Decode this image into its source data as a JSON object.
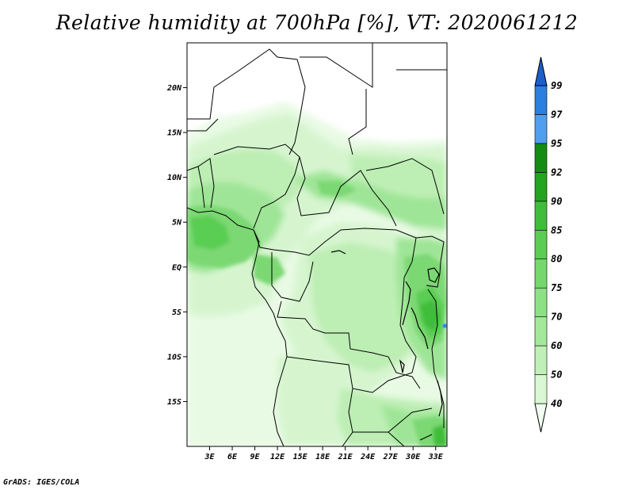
{
  "title": "Relative humidity at 700hPa [%], VT: 2020061212",
  "credit": "GrADS: IGES/COLA",
  "map": {
    "lon_range": [
      0,
      34.5
    ],
    "lat_range": [
      -20,
      25
    ],
    "lat_ticks": [
      {
        "value": 20,
        "label": "20N"
      },
      {
        "value": 15,
        "label": "15N"
      },
      {
        "value": 10,
        "label": "10N"
      },
      {
        "value": 5,
        "label": "5N"
      },
      {
        "value": 0,
        "label": "EQ"
      },
      {
        "value": -5,
        "label": "5S"
      },
      {
        "value": -10,
        "label": "10S"
      },
      {
        "value": -15,
        "label": "15S"
      }
    ],
    "lon_ticks": [
      {
        "value": 3,
        "label": "3E"
      },
      {
        "value": 6,
        "label": "6E"
      },
      {
        "value": 9,
        "label": "9E"
      },
      {
        "value": 12,
        "label": "12E"
      },
      {
        "value": 15,
        "label": "15E"
      },
      {
        "value": 18,
        "label": "18E"
      },
      {
        "value": 21,
        "label": "21E"
      },
      {
        "value": 24,
        "label": "24E"
      },
      {
        "value": 27,
        "label": "27E"
      },
      {
        "value": 30,
        "label": "30E"
      },
      {
        "value": 33,
        "label": "33E"
      }
    ]
  },
  "colorbar": {
    "levels": [
      "40",
      "50",
      "60",
      "70",
      "75",
      "80",
      "85",
      "90",
      "92",
      "95",
      "97",
      "99"
    ],
    "colors": [
      "#f0fff0",
      "#d9f7d4",
      "#c0f0b8",
      "#a4e89c",
      "#8ce184",
      "#74d86c",
      "#5acd52",
      "#3fbd3a",
      "#22a421",
      "#138c14",
      "#4f9ff0",
      "#2a7fe0",
      "#1c5fc8"
    ]
  }
}
